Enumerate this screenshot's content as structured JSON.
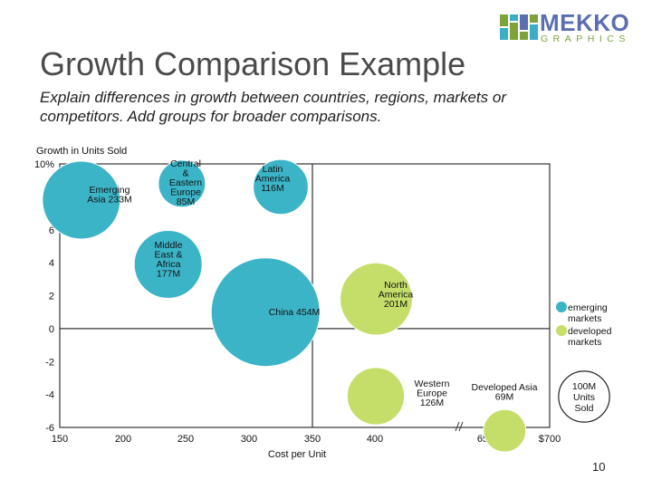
{
  "header": {
    "title": "Growth Comparison Example",
    "subtitle": "Explain differences in growth between countries, regions, markets or competitors. Add groups for broader comparisons.",
    "logo_word": "MEKKO",
    "logo_sub": "GRAPHICS",
    "logo_colors": [
      "#7ea33a",
      "#3aaec6",
      "#5b6fb0"
    ]
  },
  "page_number": "10",
  "chart_data": {
    "type": "scatter",
    "subtype": "bubble",
    "ylabel": "Growth in Units Sold",
    "xlabel": "Cost per Unit",
    "x_ticks": [
      "150",
      "200",
      "250",
      "300",
      "350",
      "400",
      "650",
      "$700"
    ],
    "x_tick_values": [
      150,
      200,
      250,
      300,
      350,
      400,
      650,
      700
    ],
    "x_axis_break": "between 400 and 650",
    "y_ticks": [
      "10%",
      "8",
      "6",
      "4",
      "2",
      "0",
      "-2",
      "-4",
      "-6"
    ],
    "y_tick_values": [
      10,
      8,
      6,
      4,
      2,
      0,
      -2,
      -4,
      -6
    ],
    "ylim": [
      -6,
      10
    ],
    "quadrant_lines": {
      "x": 350,
      "y": 0
    },
    "grid": false,
    "series": [
      {
        "name": "emerging markets",
        "color": "#3cb4c8"
      },
      {
        "name": "developed markets",
        "color": "#c5de6a"
      }
    ],
    "bubbles": [
      {
        "label": "Emerging Asia 233M",
        "x": 167,
        "y": 7.8,
        "size": 233,
        "group": "emerging markets"
      },
      {
        "label": "Central & Eastern Europe 85M",
        "x": 247,
        "y": 8.8,
        "size": 85,
        "group": "emerging markets"
      },
      {
        "label": "Latin America 116M",
        "x": 325,
        "y": 8.6,
        "size": 116,
        "group": "emerging markets"
      },
      {
        "label": "Middle East & Africa 177M",
        "x": 236,
        "y": 3.9,
        "size": 177,
        "group": "emerging markets"
      },
      {
        "label": "China 454M",
        "x": 313,
        "y": 1.0,
        "size": 454,
        "group": "emerging markets"
      },
      {
        "label": "North America 201M",
        "x": 403,
        "y": 1.8,
        "size": 201,
        "group": "developed markets"
      },
      {
        "label": "Western Europe 126M",
        "x": 402,
        "y": -4.1,
        "size": 126,
        "group": "developed markets"
      },
      {
        "label": "Developed Asia 69M",
        "x": 665,
        "y": -6.2,
        "size": 69,
        "group": "developed markets"
      }
    ],
    "legend": {
      "placement": "right",
      "items": [
        "emerging markets",
        "developed markets"
      ],
      "size_key": "100M Units Sold"
    }
  }
}
